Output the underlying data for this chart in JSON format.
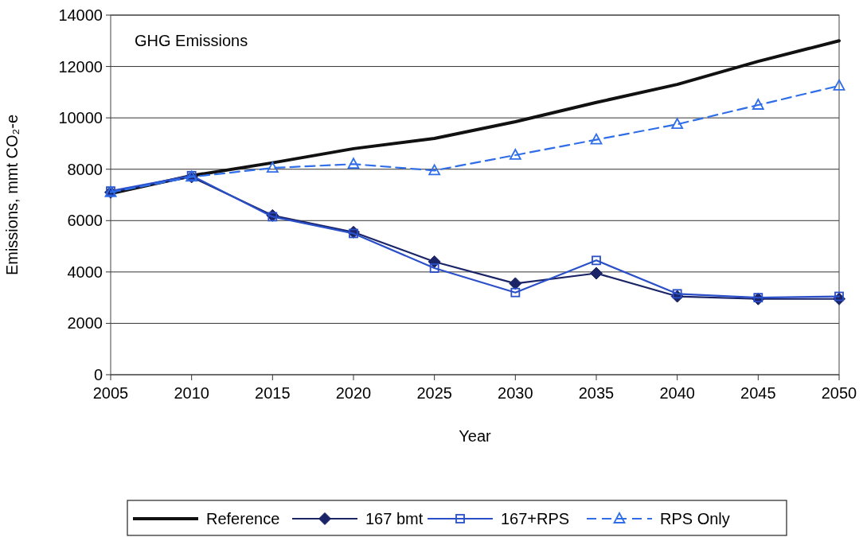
{
  "chart_data": {
    "type": "line",
    "title": "GHG Emissions",
    "xlabel": "Year",
    "ylabel": "Emissions, mmt CO₂-e",
    "x": [
      2005,
      2010,
      2015,
      2020,
      2025,
      2030,
      2035,
      2040,
      2045,
      2050
    ],
    "xlim": [
      2005,
      2050
    ],
    "xticks": [
      2005,
      2010,
      2015,
      2020,
      2025,
      2030,
      2035,
      2040,
      2045,
      2050
    ],
    "ylim": [
      0,
      14000
    ],
    "yticks": [
      0,
      2000,
      4000,
      6000,
      8000,
      10000,
      12000,
      14000
    ],
    "grid": "y",
    "legend": "bottom",
    "series": [
      {
        "name": "Reference",
        "color": "#111111",
        "marker": "none",
        "line_style": "solid",
        "values": [
          7050,
          7750,
          8250,
          8800,
          9200,
          9850,
          10600,
          11300,
          12200,
          13000
        ]
      },
      {
        "name": "167 bmt",
        "color": "#1a2466",
        "marker": "diamond",
        "line_style": "solid",
        "values": [
          7100,
          7700,
          6200,
          5550,
          4400,
          3550,
          3950,
          3050,
          2950,
          2950
        ]
      },
      {
        "name": "167+RPS",
        "color": "#2a4fc8",
        "marker": "square",
        "line_style": "solid",
        "values": [
          7150,
          7750,
          6150,
          5500,
          4150,
          3200,
          4450,
          3150,
          3000,
          3050
        ]
      },
      {
        "name": "RPS Only",
        "color": "#2f6ee8",
        "marker": "triangle",
        "line_style": "dashed",
        "values": [
          7100,
          7700,
          8050,
          8200,
          7950,
          8550,
          9150,
          9750,
          10500,
          11250
        ]
      }
    ]
  }
}
